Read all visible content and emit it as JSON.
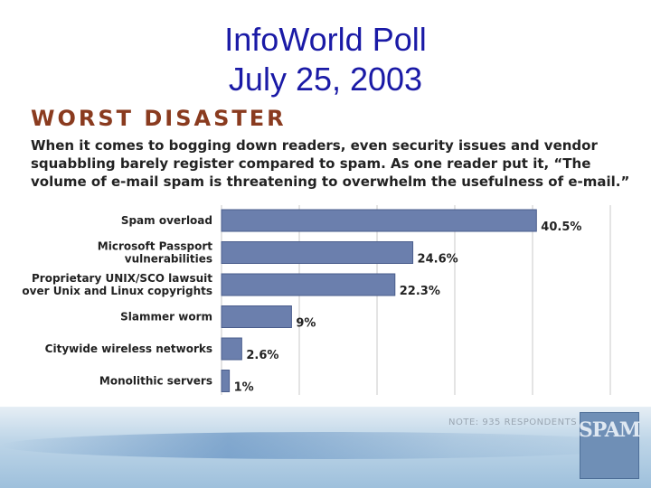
{
  "slide": {
    "title_line1": "InfoWorld Poll",
    "title_line2": "July 25, 2003"
  },
  "note": "NOTE: 935 RESPONDENTS",
  "logo_text": "SPAM",
  "colors": {
    "title": "#1a1aa6",
    "heading": "#8a3b1f",
    "bar_fill": "#6b7fad",
    "bar_stroke": "#4a5d8c",
    "grid": "#c8c8c8"
  },
  "chart_data": {
    "type": "bar",
    "orientation": "horizontal",
    "title": "WORST DISASTER",
    "subtitle_lines": [
      "When it comes to bogging down readers, even security issues and vendor",
      "squabbling barely register compared to spam. As one reader put it, “The",
      "volume of e-mail spam is threatening to overwhelm the usefulness of e-mail.”"
    ],
    "categories": [
      [
        "Spam overload"
      ],
      [
        "Microsoft Passport",
        "vulnerabilities"
      ],
      [
        "Proprietary UNIX/SCO lawsuit",
        "over Unix and Linux copyrights"
      ],
      [
        "Slammer worm"
      ],
      [
        "Citywide wireless networks"
      ],
      [
        "Monolithic servers"
      ]
    ],
    "values": [
      40.5,
      24.6,
      22.3,
      9,
      2.6,
      1
    ],
    "value_labels": [
      "40.5%",
      "24.6%",
      "22.3%",
      "9%",
      "2.6%",
      "1%"
    ],
    "xlim": [
      0,
      50
    ],
    "grid": true,
    "legend": "none"
  }
}
